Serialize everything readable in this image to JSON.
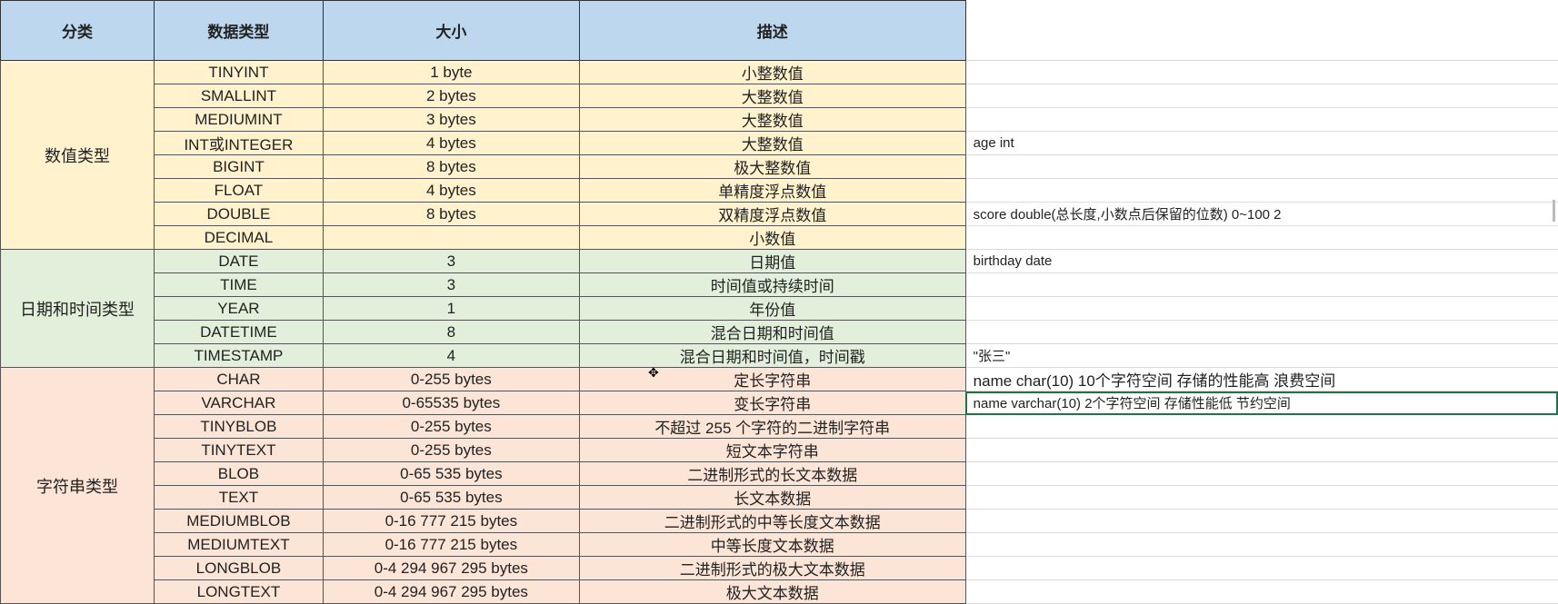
{
  "header": {
    "category": "分类",
    "type": "数据类型",
    "size": "大小",
    "description": "描述"
  },
  "groups": [
    {
      "category": "数值类型",
      "color": "#fff2cc",
      "rows": [
        {
          "type": "TINYINT",
          "size": "1 byte",
          "description": "小整数值",
          "note": ""
        },
        {
          "type": "SMALLINT",
          "size": "2 bytes",
          "description": "大整数值",
          "note": ""
        },
        {
          "type": "MEDIUMINT",
          "size": "3 bytes",
          "description": "大整数值",
          "note": ""
        },
        {
          "type": "INT或INTEGER",
          "size": "4 bytes",
          "description": "大整数值",
          "note": "age int"
        },
        {
          "type": "BIGINT",
          "size": "8 bytes",
          "description": "极大整数值",
          "note": ""
        },
        {
          "type": "FLOAT",
          "size": "4 bytes",
          "description": "单精度浮点数值",
          "note": ""
        },
        {
          "type": "DOUBLE",
          "size": "8 bytes",
          "description": "双精度浮点数值",
          "note": "score double(总长度,小数点后保留的位数)  0~100 2"
        },
        {
          "type": "DECIMAL",
          "size": "",
          "description": "小数值",
          "note": ""
        }
      ]
    },
    {
      "category": "日期和时间类型",
      "color": "#e2efda",
      "rows": [
        {
          "type": "DATE",
          "size": "3",
          "description": "日期值",
          "note": "birthday date"
        },
        {
          "type": "TIME",
          "size": "3",
          "description": "时间值或持续时间",
          "note": ""
        },
        {
          "type": "YEAR",
          "size": "1",
          "description": "年份值",
          "note": ""
        },
        {
          "type": "DATETIME",
          "size": "8",
          "description": "混合日期和时间值",
          "note": ""
        },
        {
          "type": "TIMESTAMP",
          "size": "4",
          "description": "混合日期和时间值，时间戳",
          "note": "\"张三\""
        }
      ]
    },
    {
      "category": "字符串类型",
      "color": "#fce4d6",
      "rows": [
        {
          "type": "CHAR",
          "size": "0-255 bytes",
          "description": "定长字符串",
          "note": "name char(10)    10个字符空间     存储的性能高  浪费空间"
        },
        {
          "type": "VARCHAR",
          "size": "0-65535 bytes",
          "description": "变长字符串",
          "note": "name varchar(10)   2个字符空间      存储性能低  节约空间"
        },
        {
          "type": "TINYBLOB",
          "size": "0-255 bytes",
          "description": "不超过 255 个字符的二进制字符串",
          "note": ""
        },
        {
          "type": "TINYTEXT",
          "size": "0-255 bytes",
          "description": "短文本字符串",
          "note": ""
        },
        {
          "type": "BLOB",
          "size": "0-65 535 bytes",
          "description": "二进制形式的长文本数据",
          "note": ""
        },
        {
          "type": "TEXT",
          "size": "0-65 535 bytes",
          "description": "长文本数据",
          "note": ""
        },
        {
          "type": "MEDIUMBLOB",
          "size": "0-16 777 215 bytes",
          "description": "二进制形式的中等长度文本数据",
          "note": ""
        },
        {
          "type": "MEDIUMTEXT",
          "size": "0-16 777 215 bytes",
          "description": "中等长度文本数据",
          "note": ""
        },
        {
          "type": "LONGBLOB",
          "size": "0-4 294 967 295 bytes",
          "description": "二进制形式的极大文本数据",
          "note": ""
        },
        {
          "type": "LONGTEXT",
          "size": "0-4 294 967 295 bytes",
          "description": "极大文本数据",
          "note": ""
        }
      ]
    }
  ],
  "selected_cell": "name varchar(10) note cell"
}
